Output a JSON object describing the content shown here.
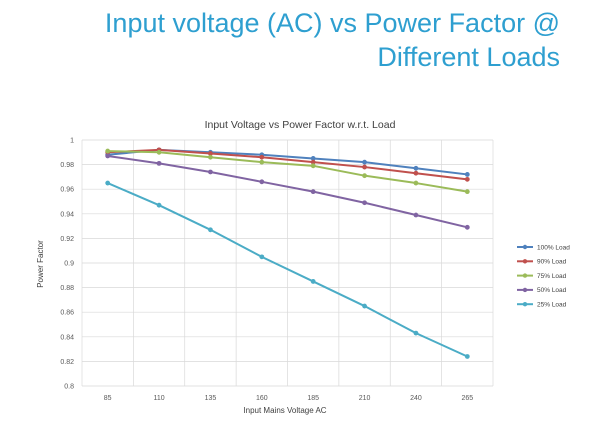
{
  "slide": {
    "title_line1": "Input voltage (AC) vs Power Factor @",
    "title_line2": "Different Loads"
  },
  "chart_data": {
    "type": "line",
    "title": "Input Voltage vs Power Factor w.r.t. Load",
    "xlabel": "Input Mains Voltage AC",
    "ylabel": "Power Factor",
    "categories": [
      "85",
      "110",
      "135",
      "160",
      "185",
      "210",
      "240",
      "265"
    ],
    "ylim": [
      0.8,
      1
    ],
    "yticks": [
      "0.8",
      "0.82",
      "0.84",
      "0.86",
      "0.88",
      "0.9",
      "0.92",
      "0.94",
      "0.96",
      "0.98",
      "1"
    ],
    "grid": true,
    "legend_position": "right",
    "series": [
      {
        "name": "100% Load",
        "color": "#4f81bd",
        "values": [
          0.988,
          0.992,
          0.99,
          0.988,
          0.985,
          0.982,
          0.977,
          0.972
        ]
      },
      {
        "name": "90% Load",
        "color": "#c0504d",
        "values": [
          0.99,
          0.992,
          0.989,
          0.986,
          0.982,
          0.978,
          0.973,
          0.968
        ]
      },
      {
        "name": "75% Load",
        "color": "#9bbb59",
        "values": [
          0.991,
          0.99,
          0.986,
          0.982,
          0.979,
          0.971,
          0.965,
          0.958
        ]
      },
      {
        "name": "50% Load",
        "color": "#8064a2",
        "values": [
          0.987,
          0.981,
          0.974,
          0.966,
          0.958,
          0.949,
          0.939,
          0.929
        ]
      },
      {
        "name": "25% Load",
        "color": "#4bacc6",
        "values": [
          0.965,
          0.947,
          0.927,
          0.905,
          0.885,
          0.865,
          0.843,
          0.824
        ]
      }
    ]
  }
}
